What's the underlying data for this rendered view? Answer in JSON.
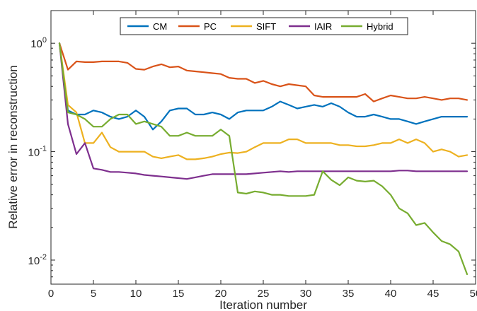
{
  "chart_data": {
    "type": "line",
    "title": "",
    "xlabel": "Iteration number",
    "ylabel": "Relative error in reconstruction",
    "xlim": [
      0,
      50
    ],
    "ylim": [
      0.006,
      2
    ],
    "yscale": "log",
    "grid": false,
    "legend_position": "top-center",
    "x_ticks": [
      0,
      5,
      10,
      15,
      20,
      25,
      30,
      35,
      40,
      45,
      50
    ],
    "x_tick_labels": [
      "0",
      "5",
      "10",
      "15",
      "20",
      "25",
      "30",
      "35",
      "40",
      "45",
      "50"
    ],
    "y_ticks": [
      0.01,
      0.1,
      1
    ],
    "y_tick_labels": [
      {
        "base": "10",
        "exp": "-2"
      },
      {
        "base": "10",
        "exp": "-1"
      },
      {
        "base": "10",
        "exp": "0"
      }
    ],
    "x": [
      1,
      2,
      3,
      4,
      5,
      6,
      7,
      8,
      9,
      10,
      11,
      12,
      13,
      14,
      15,
      16,
      17,
      18,
      19,
      20,
      21,
      22,
      23,
      24,
      25,
      26,
      27,
      28,
      29,
      30,
      31,
      32,
      33,
      34,
      35,
      36,
      37,
      38,
      39,
      40,
      41,
      42,
      43,
      44,
      45,
      46,
      47,
      48,
      49
    ],
    "series": [
      {
        "name": "CM",
        "color": "#0072BD",
        "values": [
          1.0,
          0.24,
          0.22,
          0.22,
          0.24,
          0.23,
          0.21,
          0.2,
          0.21,
          0.24,
          0.21,
          0.16,
          0.19,
          0.24,
          0.25,
          0.25,
          0.22,
          0.22,
          0.23,
          0.22,
          0.2,
          0.23,
          0.24,
          0.24,
          0.24,
          0.26,
          0.29,
          0.27,
          0.25,
          0.26,
          0.27,
          0.26,
          0.28,
          0.26,
          0.23,
          0.21,
          0.21,
          0.22,
          0.21,
          0.2,
          0.2,
          0.19,
          0.18,
          0.19,
          0.2,
          0.21,
          0.21,
          0.21,
          0.21
        ]
      },
      {
        "name": "PC",
        "color": "#D95319",
        "values": [
          1.0,
          0.57,
          0.68,
          0.67,
          0.67,
          0.68,
          0.68,
          0.68,
          0.66,
          0.58,
          0.57,
          0.61,
          0.64,
          0.6,
          0.61,
          0.56,
          0.55,
          0.54,
          0.53,
          0.52,
          0.48,
          0.47,
          0.47,
          0.43,
          0.45,
          0.42,
          0.4,
          0.42,
          0.41,
          0.4,
          0.33,
          0.32,
          0.32,
          0.32,
          0.32,
          0.32,
          0.34,
          0.29,
          0.31,
          0.33,
          0.32,
          0.31,
          0.31,
          0.32,
          0.31,
          0.3,
          0.31,
          0.31,
          0.3
        ]
      },
      {
        "name": "SIFT",
        "color": "#EDB120",
        "values": [
          1.0,
          0.27,
          0.23,
          0.12,
          0.12,
          0.15,
          0.11,
          0.1,
          0.1,
          0.1,
          0.1,
          0.09,
          0.087,
          0.09,
          0.093,
          0.085,
          0.085,
          0.087,
          0.09,
          0.095,
          0.098,
          0.097,
          0.1,
          0.11,
          0.12,
          0.12,
          0.12,
          0.13,
          0.13,
          0.12,
          0.12,
          0.12,
          0.12,
          0.115,
          0.115,
          0.112,
          0.112,
          0.115,
          0.12,
          0.12,
          0.13,
          0.12,
          0.13,
          0.12,
          0.1,
          0.105,
          0.1,
          0.09,
          0.093
        ]
      },
      {
        "name": "IAIR",
        "color": "#7E2F8E",
        "values": [
          1.0,
          0.18,
          0.095,
          0.12,
          0.07,
          0.068,
          0.065,
          0.065,
          0.064,
          0.063,
          0.061,
          0.06,
          0.059,
          0.058,
          0.057,
          0.056,
          0.058,
          0.06,
          0.062,
          0.062,
          0.062,
          0.062,
          0.062,
          0.063,
          0.064,
          0.065,
          0.066,
          0.065,
          0.066,
          0.066,
          0.066,
          0.066,
          0.066,
          0.066,
          0.066,
          0.066,
          0.066,
          0.066,
          0.066,
          0.066,
          0.067,
          0.067,
          0.066,
          0.066,
          0.066,
          0.066,
          0.066,
          0.066,
          0.066
        ]
      },
      {
        "name": "Hybrid",
        "color": "#77AC30",
        "values": [
          1.0,
          0.23,
          0.22,
          0.2,
          0.17,
          0.17,
          0.2,
          0.22,
          0.22,
          0.18,
          0.19,
          0.18,
          0.17,
          0.14,
          0.14,
          0.15,
          0.14,
          0.14,
          0.14,
          0.16,
          0.14,
          0.042,
          0.041,
          0.043,
          0.042,
          0.04,
          0.04,
          0.039,
          0.039,
          0.039,
          0.04,
          0.066,
          0.055,
          0.049,
          0.058,
          0.054,
          0.053,
          0.054,
          0.048,
          0.04,
          0.03,
          0.027,
          0.021,
          0.022,
          0.018,
          0.015,
          0.014,
          0.012,
          0.0074
        ]
      }
    ]
  }
}
